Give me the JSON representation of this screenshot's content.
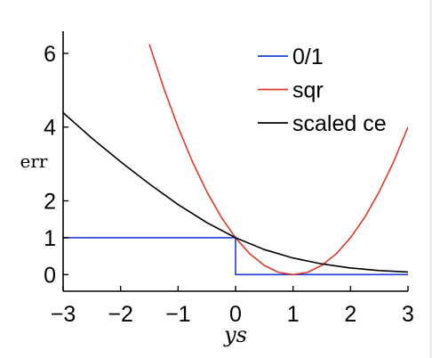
{
  "chart_data": {
    "type": "line",
    "xlabel": "ys",
    "ylabel": "err",
    "xlim": [
      -3,
      3
    ],
    "ylim": [
      -0.45,
      6.6
    ],
    "xticks": [
      "−3",
      "−2",
      "−1",
      "0",
      "1",
      "2",
      "3"
    ],
    "xtick_values": [
      -3,
      -2,
      -1,
      0,
      1,
      2,
      3
    ],
    "yticks": [
      "0",
      "1",
      "2",
      "4",
      "6"
    ],
    "ytick_values": [
      0,
      1,
      2,
      4,
      6
    ],
    "legend_position": "top-right",
    "series": [
      {
        "name": "0/1",
        "color": "#1f3fd6",
        "x": [
          -3,
          0,
          0,
          3
        ],
        "y": [
          1,
          1,
          0,
          0
        ]
      },
      {
        "name": "sqr",
        "color": "#e0392b",
        "x": [
          -1.5,
          -1.25,
          -1,
          -0.75,
          -0.5,
          -0.25,
          0,
          0.25,
          0.5,
          0.75,
          1,
          1.25,
          1.5,
          1.75,
          2,
          2.25,
          2.5,
          2.75,
          3
        ],
        "y": [
          6.25,
          5.06,
          4,
          3.06,
          2.25,
          1.56,
          1,
          0.56,
          0.25,
          0.06,
          0,
          0.06,
          0.25,
          0.56,
          1,
          1.56,
          2.25,
          3.06,
          4
        ]
      },
      {
        "name": "scaled ce",
        "color": "#000000",
        "x": [
          -3,
          -2.5,
          -2,
          -1.5,
          -1,
          -0.5,
          0,
          0.5,
          1,
          1.5,
          2,
          2.5,
          3
        ],
        "y": [
          4.39,
          3.7,
          3.06,
          2.46,
          1.9,
          1.41,
          1,
          0.68,
          0.45,
          0.29,
          0.18,
          0.11,
          0.07
        ]
      }
    ]
  }
}
